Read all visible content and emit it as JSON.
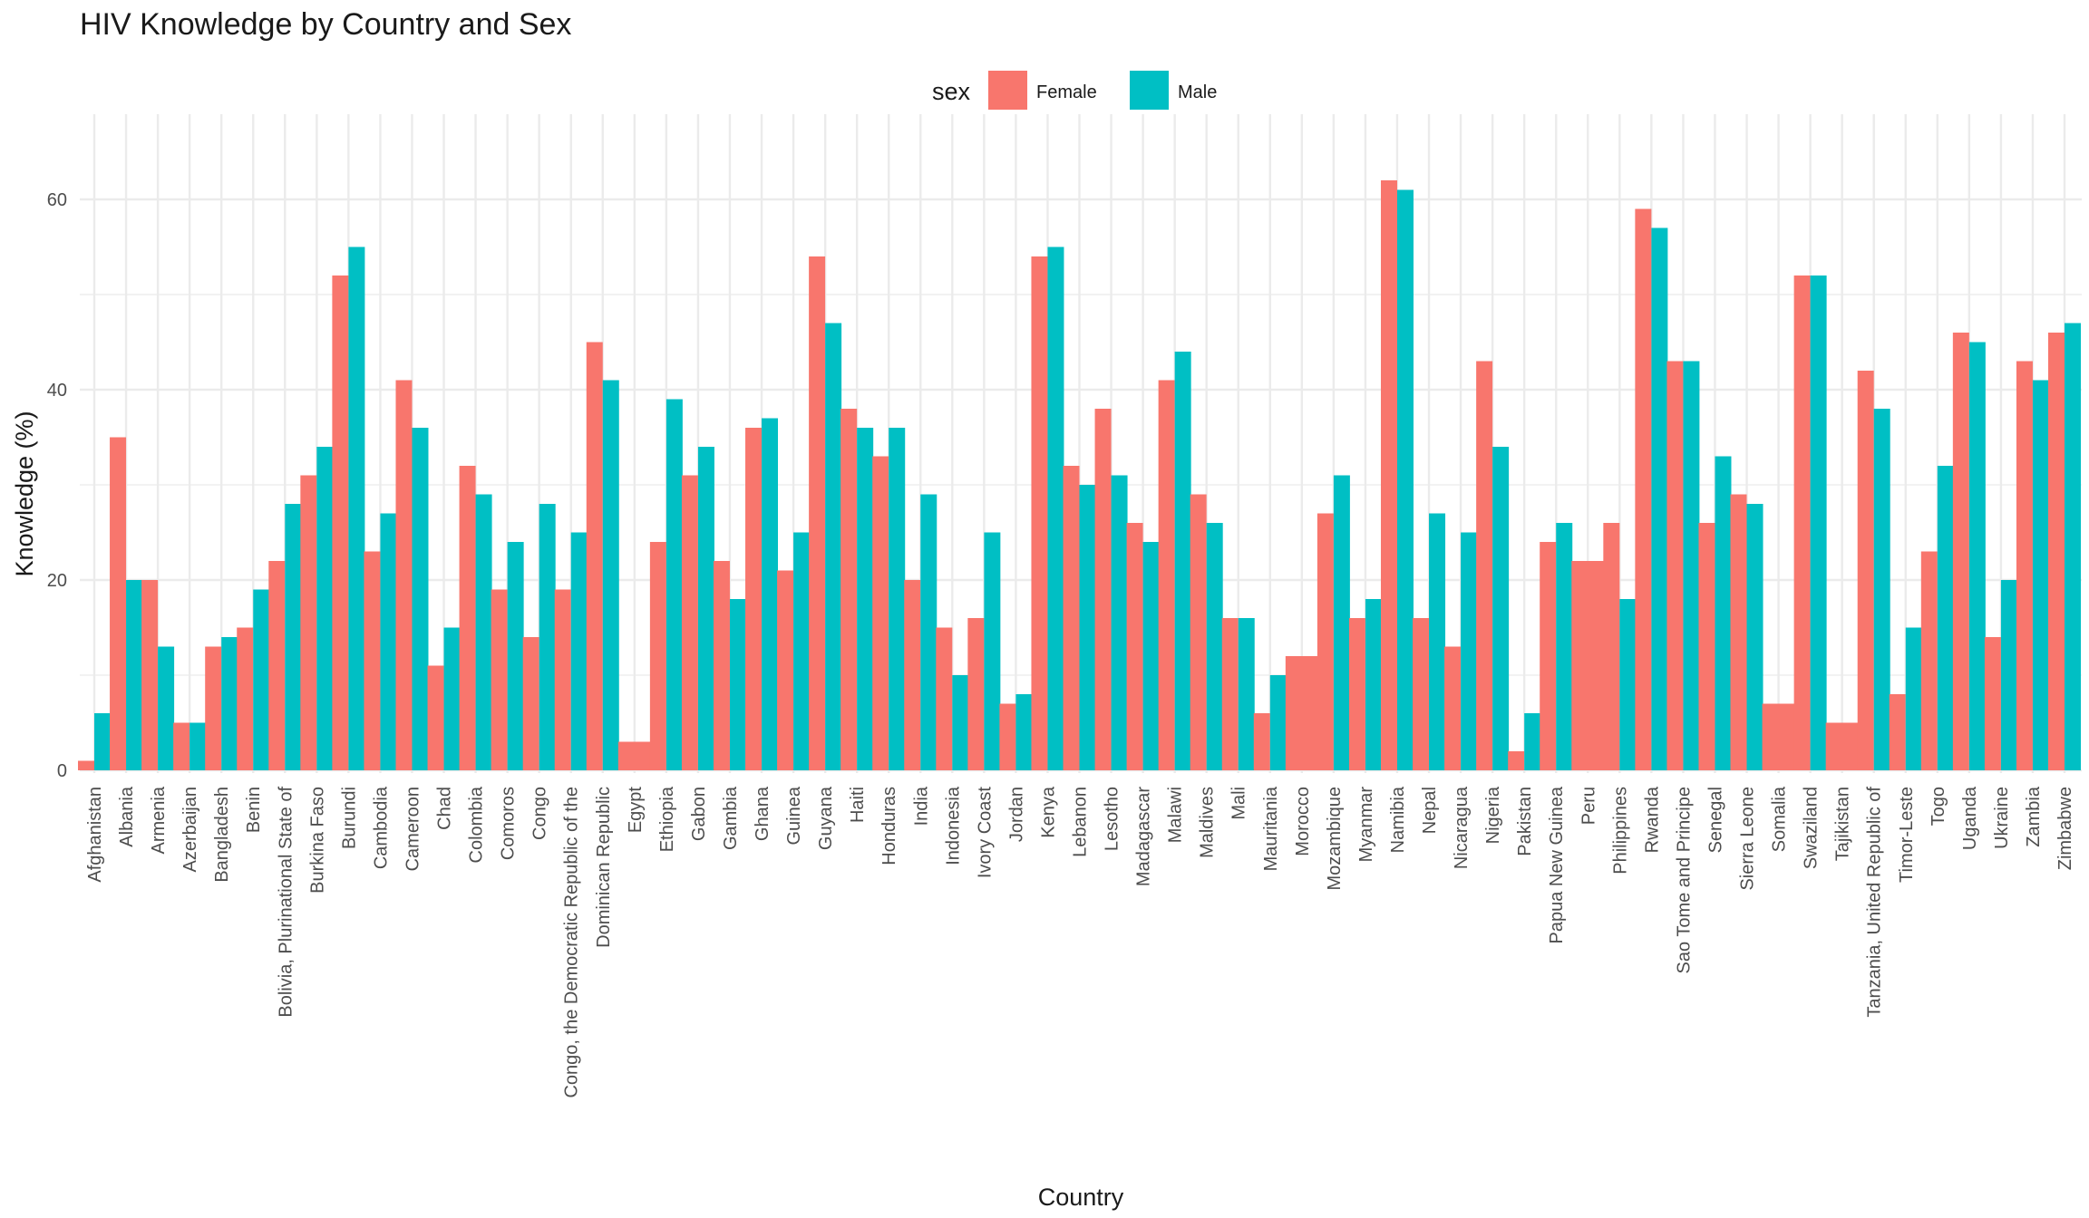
{
  "chart_data": {
    "type": "bar",
    "title": "HIV Knowledge by Country and Sex",
    "xlabel": "Country",
    "ylabel": "Knowledge (%)",
    "ylim": [
      0,
      65
    ],
    "yticks": [
      0,
      20,
      40,
      60
    ],
    "grid": true,
    "legend": {
      "title": "sex",
      "position": "top"
    },
    "categories": [
      "Afghanistan",
      "Albania",
      "Armenia",
      "Azerbaijan",
      "Bangladesh",
      "Benin",
      "Bolivia, Plurinational State of",
      "Burkina Faso",
      "Burundi",
      "Cambodia",
      "Cameroon",
      "Chad",
      "Colombia",
      "Comoros",
      "Congo",
      "Congo, the Democratic Republic of the",
      "Dominican Republic",
      "Egypt",
      "Ethiopia",
      "Gabon",
      "Gambia",
      "Ghana",
      "Guinea",
      "Guyana",
      "Haiti",
      "Honduras",
      "India",
      "Indonesia",
      "Ivory Coast",
      "Jordan",
      "Kenya",
      "Lebanon",
      "Lesotho",
      "Madagascar",
      "Malawi",
      "Maldives",
      "Mali",
      "Mauritania",
      "Morocco",
      "Mozambique",
      "Myanmar",
      "Namibia",
      "Nepal",
      "Nicaragua",
      "Nigeria",
      "Pakistan",
      "Papua New Guinea",
      "Peru",
      "Philippines",
      "Rwanda",
      "Sao Tome and Principe",
      "Senegal",
      "Sierra Leone",
      "Somalia",
      "Swaziland",
      "Tajikistan",
      "Tanzania, United Republic of",
      "Timor-Leste",
      "Togo",
      "Uganda",
      "Ukraine",
      "Zambia",
      "Zimbabwe"
    ],
    "series": [
      {
        "name": "Female",
        "color": "#F8766D",
        "values": [
          1,
          35,
          20,
          5,
          13,
          15,
          22,
          31,
          52,
          23,
          41,
          11,
          32,
          19,
          14,
          19,
          45,
          3,
          24,
          31,
          22,
          36,
          21,
          54,
          38,
          33,
          20,
          15,
          16,
          7,
          54,
          32,
          38,
          26,
          41,
          29,
          16,
          6,
          12,
          27,
          16,
          62,
          16,
          13,
          43,
          2,
          24,
          22,
          26,
          59,
          43,
          26,
          29,
          7,
          52,
          5,
          42,
          8,
          23,
          46,
          14,
          43,
          46
        ]
      },
      {
        "name": "Male",
        "color": "#00BFC4",
        "values": [
          6,
          20,
          13,
          5,
          14,
          19,
          28,
          34,
          55,
          27,
          36,
          15,
          29,
          24,
          28,
          25,
          41,
          null,
          39,
          34,
          18,
          37,
          25,
          47,
          36,
          36,
          29,
          10,
          25,
          8,
          55,
          30,
          31,
          24,
          44,
          26,
          16,
          10,
          null,
          31,
          18,
          61,
          27,
          25,
          34,
          6,
          26,
          null,
          18,
          57,
          43,
          33,
          28,
          null,
          52,
          null,
          38,
          15,
          32,
          45,
          20,
          41,
          47
        ]
      }
    ]
  }
}
